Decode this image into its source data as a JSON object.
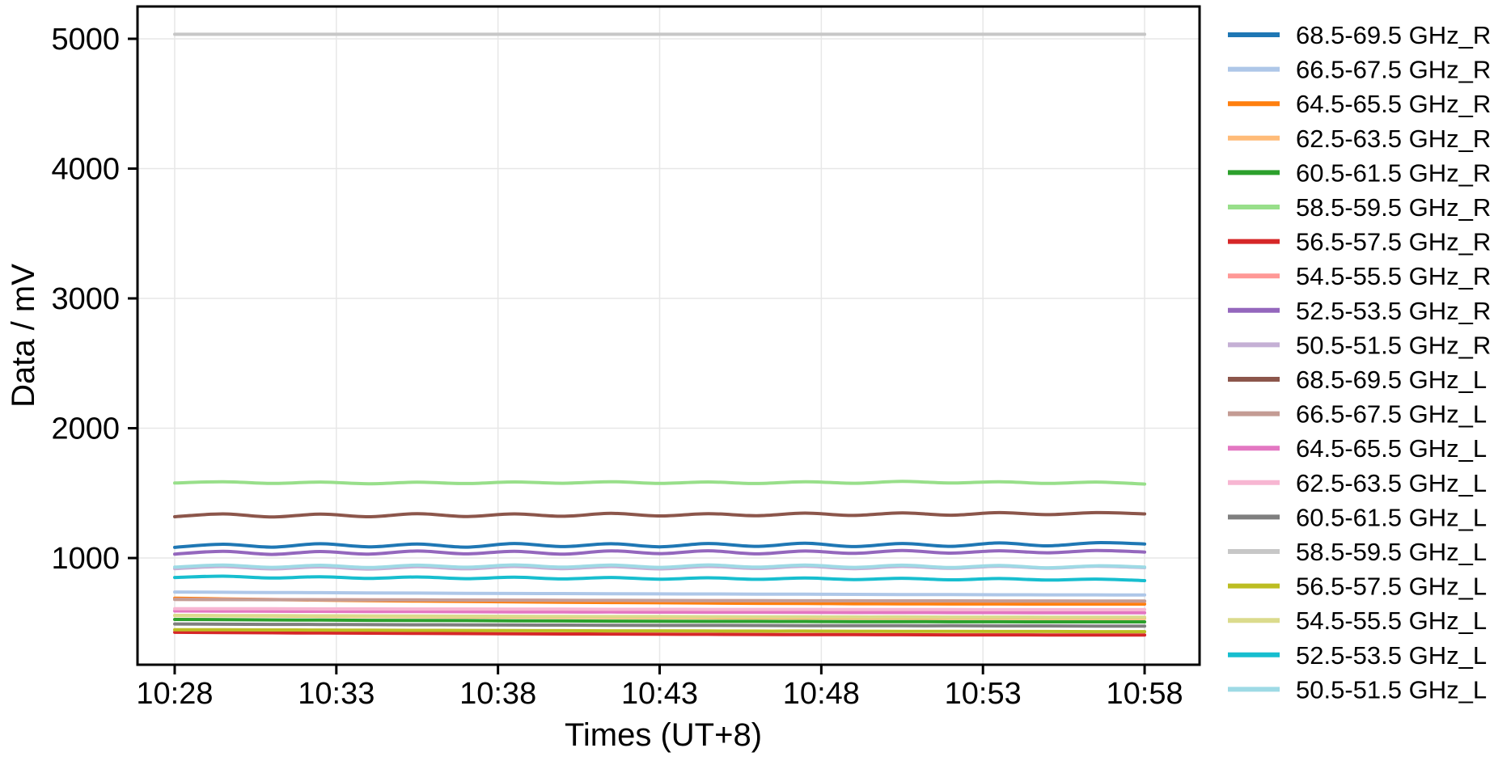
{
  "chart_data": {
    "type": "line",
    "title": "",
    "xlabel": "Times (UT+8)",
    "ylabel": "Data / mV",
    "grid": true,
    "legend_position": "right-outside",
    "x_tick_labels": [
      "10:28",
      "10:33",
      "10:38",
      "10:43",
      "10:48",
      "10:53",
      "10:58"
    ],
    "x_tick_minutes": [
      0,
      5,
      10,
      15,
      20,
      25,
      30
    ],
    "y_tick_labels": [
      "1000",
      "2000",
      "3000",
      "4000",
      "5000"
    ],
    "y_ticks": [
      1000,
      2000,
      3000,
      4000,
      5000
    ],
    "xlim_minutes": [
      -1.15,
      31.7
    ],
    "ylim": [
      178,
      5249
    ],
    "x_minutes": [
      0,
      1.5,
      3,
      4.5,
      6,
      7.5,
      9,
      10.5,
      12,
      13.5,
      15,
      16.5,
      18,
      19.5,
      21,
      22.5,
      24,
      25.5,
      27,
      28.5,
      30
    ],
    "series": [
      {
        "name": "68.5-69.5 GHz_R",
        "color": "#1f77b4",
        "values": [
          1082,
          1106,
          1084,
          1110,
          1086,
          1108,
          1084,
          1112,
          1088,
          1110,
          1086,
          1112,
          1090,
          1114,
          1088,
          1112,
          1090,
          1116,
          1094,
          1118,
          1108
        ]
      },
      {
        "name": "66.5-67.5 GHz_R",
        "color": "#aec7e8",
        "values": [
          738,
          736,
          734,
          733,
          731,
          730,
          728,
          727,
          726,
          725,
          724,
          723,
          722,
          721,
          720,
          719,
          718,
          717,
          716,
          716,
          715
        ]
      },
      {
        "name": "64.5-65.5 GHz_R",
        "color": "#ff7f0e",
        "values": [
          690,
          685,
          680,
          676,
          672,
          668,
          665,
          662,
          659,
          657,
          655,
          653,
          651,
          650,
          648,
          647,
          646,
          646,
          645,
          645,
          645
        ]
      },
      {
        "name": "62.5-63.5 GHz_R",
        "color": "#ffbb78",
        "values": [
          557,
          555,
          553,
          551,
          549,
          548,
          546,
          545,
          543,
          542,
          541,
          540,
          539,
          538,
          537,
          537,
          536,
          536,
          535,
          535,
          535
        ]
      },
      {
        "name": "60.5-61.5 GHz_R",
        "color": "#2ca02c",
        "values": [
          527,
          525,
          523,
          522,
          520,
          519,
          518,
          516,
          515,
          514,
          513,
          512,
          512,
          511,
          510,
          510,
          509,
          509,
          508,
          508,
          508
        ]
      },
      {
        "name": "58.5-59.5 GHz_R",
        "color": "#98df8a",
        "values": [
          1578,
          1588,
          1575,
          1585,
          1572,
          1584,
          1574,
          1586,
          1576,
          1588,
          1575,
          1586,
          1574,
          1588,
          1576,
          1590,
          1578,
          1588,
          1575,
          1585,
          1570
        ]
      },
      {
        "name": "56.5-57.5 GHz_R",
        "color": "#d62728",
        "values": [
          428,
          426,
          424,
          422,
          421,
          419,
          418,
          416,
          415,
          414,
          413,
          412,
          411,
          410,
          410,
          409,
          408,
          408,
          407,
          407,
          407
        ]
      },
      {
        "name": "54.5-55.5 GHz_R",
        "color": "#ff9896",
        "values": [
          682,
          681,
          680,
          679,
          678,
          677,
          676,
          675,
          674,
          673,
          672,
          672,
          671,
          670,
          670,
          669,
          669,
          668,
          668,
          667,
          667
        ]
      },
      {
        "name": "52.5-53.5 GHz_R",
        "color": "#9467bd",
        "values": [
          1030,
          1052,
          1028,
          1050,
          1030,
          1054,
          1032,
          1052,
          1030,
          1055,
          1034,
          1056,
          1032,
          1054,
          1036,
          1058,
          1038,
          1056,
          1040,
          1058,
          1046
        ]
      },
      {
        "name": "50.5-51.5 GHz_R",
        "color": "#c5b0d5",
        "values": [
          918,
          934,
          916,
          932,
          915,
          933,
          917,
          935,
          918,
          934,
          916,
          935,
          920,
          936,
          918,
          935,
          921,
          937,
          922,
          936,
          926
        ]
      },
      {
        "name": "68.5-69.5 GHz_L",
        "color": "#8c564b",
        "values": [
          1318,
          1340,
          1316,
          1338,
          1318,
          1342,
          1320,
          1340,
          1322,
          1344,
          1324,
          1342,
          1326,
          1346,
          1328,
          1348,
          1330,
          1350,
          1334,
          1350,
          1340
        ]
      },
      {
        "name": "66.5-67.5 GHz_L",
        "color": "#c49c94",
        "values": [
          681,
          680,
          679,
          678,
          677,
          677,
          676,
          675,
          674,
          674,
          673,
          672,
          672,
          671,
          671,
          670,
          670,
          669,
          669,
          669,
          668
        ]
      },
      {
        "name": "64.5-65.5 GHz_L",
        "color": "#e377c2",
        "values": [
          592,
          591,
          590,
          589,
          588,
          587,
          586,
          585,
          584,
          584,
          583,
          582,
          582,
          581,
          580,
          580,
          579,
          579,
          578,
          578,
          578
        ]
      },
      {
        "name": "62.5-63.5 GHz_L",
        "color": "#f7b6d2",
        "values": [
          610,
          609,
          609,
          608,
          608,
          607,
          607,
          606,
          606,
          605,
          605,
          604,
          604,
          604,
          603,
          603,
          603,
          602,
          602,
          602,
          602
        ]
      },
      {
        "name": "60.5-61.5 GHz_L",
        "color": "#7f7f7f",
        "values": [
          492,
          490,
          489,
          488,
          487,
          486,
          485,
          484,
          483,
          482,
          481,
          481,
          480,
          479,
          479,
          478,
          478,
          477,
          477,
          476,
          476
        ]
      },
      {
        "name": "58.5-59.5 GHz_L",
        "color": "#c7c7c7",
        "values": [
          5035,
          5035,
          5035,
          5035,
          5035,
          5035,
          5035,
          5035,
          5035,
          5035,
          5035,
          5035,
          5035,
          5035,
          5035,
          5035,
          5035,
          5035,
          5035,
          5035,
          5035
        ]
      },
      {
        "name": "56.5-57.5 GHz_L",
        "color": "#bcbd22",
        "values": [
          448,
          447,
          446,
          445,
          444,
          443,
          442,
          441,
          440,
          439,
          439,
          438,
          437,
          437,
          436,
          435,
          435,
          434,
          434,
          433,
          433
        ]
      },
      {
        "name": "54.5-55.5 GHz_L",
        "color": "#dbdb8d",
        "values": [
          558,
          557,
          556,
          555,
          554,
          553,
          552,
          551,
          550,
          549,
          549,
          548,
          547,
          547,
          546,
          546,
          545,
          545,
          544,
          544,
          544
        ]
      },
      {
        "name": "52.5-53.5 GHz_L",
        "color": "#17becf",
        "values": [
          850,
          860,
          846,
          856,
          843,
          854,
          841,
          852,
          839,
          850,
          837,
          848,
          836,
          846,
          834,
          844,
          832,
          842,
          830,
          838,
          826
        ]
      },
      {
        "name": "50.5-51.5 GHz_L",
        "color": "#9edae5",
        "values": [
          930,
          946,
          928,
          944,
          927,
          945,
          929,
          947,
          930,
          946,
          928,
          947,
          930,
          946,
          928,
          945,
          927,
          943,
          925,
          940,
          930
        ]
      }
    ]
  },
  "colors": {
    "background": "#ffffff",
    "spine": "#000000",
    "grid": "#e7e7e7",
    "tick": "#000000",
    "text": "#000000"
  }
}
